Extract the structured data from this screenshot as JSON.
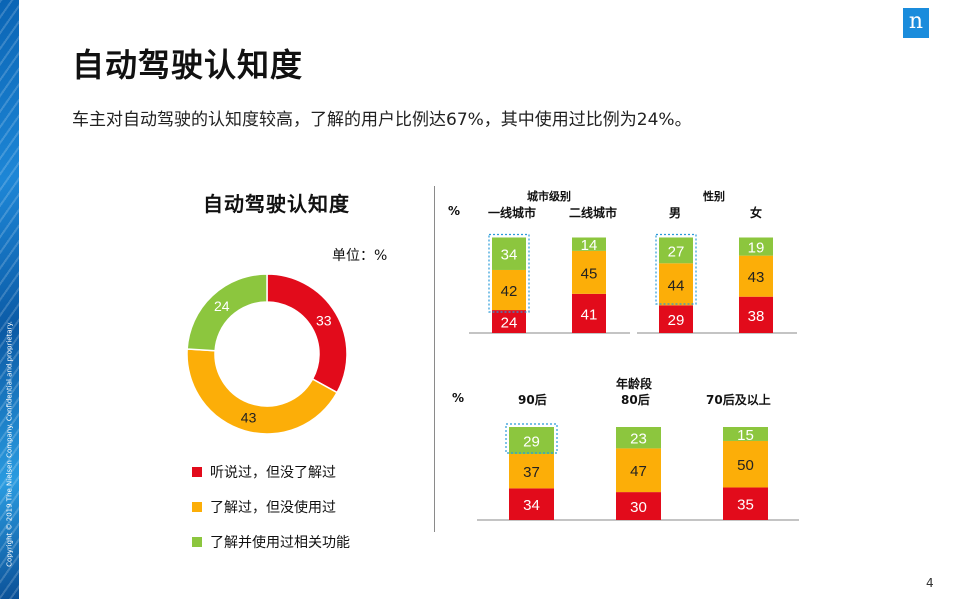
{
  "page": {
    "title": "自动驾驶认知度",
    "subtitle": "车主对自动驾驶的认知度较高，了解的用户比例达67%，其中使用过比例为24%。",
    "copyright": "Copyright © 2019 The Nielsen Company. Confidential and proprietary.",
    "logo": "n",
    "page_number": "4"
  },
  "colors": {
    "red": "#e20b1b",
    "orange": "#fcae08",
    "green": "#8cc63e",
    "highlight": "#2a9bd8"
  },
  "chart_data": [
    {
      "type": "pie",
      "title": "自动驾驶认知度",
      "unit_label": "单位：%",
      "labels": [
        "听说过，但没了解过",
        "了解过，但没使用过",
        "了解并使用过相关功能"
      ],
      "values": [
        33,
        43,
        24
      ],
      "colors": [
        "#e20b1b",
        "#fcae08",
        "#8cc63e"
      ],
      "donut": true
    },
    {
      "type": "bar",
      "stacked": true,
      "group_label": "城市级别",
      "unit": "%",
      "categories": [
        "一线城市",
        "二线城市"
      ],
      "series": [
        {
          "values": [
            24,
            41
          ],
          "color": "#e20b1b"
        },
        {
          "values": [
            42,
            45
          ],
          "color": "#fcae08"
        },
        {
          "values": [
            34,
            14
          ],
          "color": "#8cc63e"
        }
      ],
      "highlighted": [
        0
      ]
    },
    {
      "type": "bar",
      "stacked": true,
      "group_label": "性别",
      "unit": "",
      "categories": [
        "男",
        "女"
      ],
      "series": [
        {
          "values": [
            29,
            38
          ],
          "color": "#e20b1b"
        },
        {
          "values": [
            44,
            43
          ],
          "color": "#fcae08"
        },
        {
          "values": [
            27,
            19
          ],
          "color": "#8cc63e"
        }
      ],
      "highlighted": [
        0
      ]
    },
    {
      "type": "bar",
      "stacked": true,
      "group_label": "年龄段",
      "unit": "%",
      "categories": [
        "90后",
        "80后",
        "70后及以上"
      ],
      "series": [
        {
          "values": [
            34,
            30,
            35
          ],
          "color": "#e20b1b"
        },
        {
          "values": [
            37,
            47,
            50
          ],
          "color": "#fcae08"
        },
        {
          "values": [
            29,
            23,
            15
          ],
          "color": "#8cc63e"
        }
      ],
      "highlighted": [
        0
      ]
    }
  ]
}
